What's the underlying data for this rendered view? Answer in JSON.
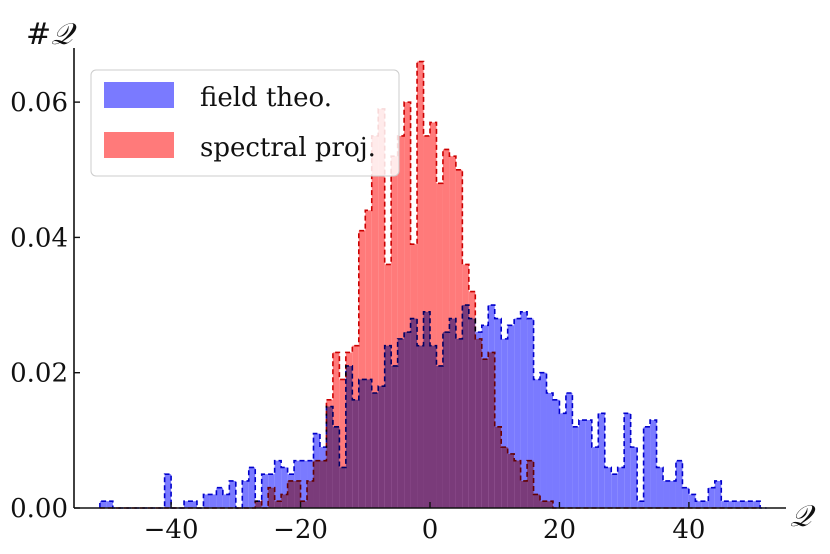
{
  "chart_data": {
    "type": "histogram",
    "title": "",
    "xlabel": "𝒬",
    "ylabel": "#𝒬",
    "xlim": [
      -55,
      55
    ],
    "ylim": [
      0,
      0.068
    ],
    "bin_width": 1,
    "x_ticks": [
      {
        "value": -40,
        "label": "−40"
      },
      {
        "value": -20,
        "label": "−20"
      },
      {
        "value": 0,
        "label": "0"
      },
      {
        "value": 20,
        "label": "20"
      },
      {
        "value": 40,
        "label": "40"
      }
    ],
    "y_ticks": [
      {
        "value": 0.0,
        "label": "0.00"
      },
      {
        "value": 0.02,
        "label": "0.02"
      },
      {
        "value": 0.04,
        "label": "0.04"
      },
      {
        "value": 0.06,
        "label": "0.06"
      }
    ],
    "grid": false,
    "legend_position": "top-left",
    "series": [
      {
        "name": "field theo.",
        "color": "#6b6bff",
        "edge_color": "#0000cc",
        "x_start": -51,
        "values": [
          0.001,
          0.001,
          0,
          0,
          0,
          0,
          0,
          0,
          0,
          0,
          0.005,
          0,
          0,
          0.001,
          0.001,
          0,
          0.002,
          0.002,
          0.003,
          0.002,
          0.004,
          0,
          0.004,
          0.006,
          0.001,
          0.005,
          0.005,
          0.007,
          0.006,
          0.005,
          0.007,
          0.007,
          0.007,
          0.011,
          0.009,
          0.015,
          0.012,
          0.006,
          0.021,
          0.016,
          0.019,
          0.019,
          0.017,
          0.018,
          0.024,
          0.021,
          0.025,
          0.026,
          0.028,
          0.024,
          0.029,
          0.024,
          0.021,
          0.026,
          0.028,
          0.025,
          0.03,
          0.028,
          0.026,
          0.027,
          0.03,
          0.028,
          0.025,
          0.027,
          0.028,
          0.029,
          0.028,
          0.019,
          0.02,
          0.017,
          0.016,
          0.014,
          0.017,
          0.012,
          0.013,
          0.013,
          0.009,
          0.014,
          0.006,
          0.005,
          0.006,
          0.014,
          0.009,
          0.001,
          0.012,
          0.013,
          0.006,
          0.004,
          0.004,
          0.007,
          0.003,
          0.002,
          0.001,
          0.001,
          0.003,
          0.004,
          0.001,
          0.001,
          0.001,
          0.001,
          0.001,
          0.001,
          0
        ]
      },
      {
        "name": "spectral proj.",
        "color": "#ff6b6b",
        "edge_color": "#cc0000",
        "x_start": -51,
        "values": [
          0,
          0,
          0,
          0,
          0,
          0,
          0,
          0,
          0,
          0,
          0,
          0,
          0,
          0,
          0,
          0,
          0,
          0,
          0,
          0,
          0,
          0,
          0,
          0,
          0.001,
          0,
          0.003,
          0.001,
          0.002,
          0.004,
          0.004,
          0.001,
          0.004,
          0.007,
          0.007,
          0.016,
          0.023,
          0.019,
          0.023,
          0.024,
          0.041,
          0.044,
          0.055,
          0.059,
          0.036,
          0.052,
          0.055,
          0.06,
          0.039,
          0.066,
          0.055,
          0.057,
          0.048,
          0.053,
          0.052,
          0.05,
          0.036,
          0.032,
          0.025,
          0.022,
          0.023,
          0.012,
          0.009,
          0.008,
          0.007,
          0.004,
          0.007,
          0.002,
          0.001,
          0.001,
          0,
          0,
          0,
          0,
          0,
          0,
          0,
          0,
          0,
          0,
          0,
          0,
          0,
          0,
          0,
          0,
          0,
          0,
          0,
          0,
          0,
          0,
          0,
          0,
          0,
          0,
          0,
          0,
          0,
          0,
          0,
          0
        ]
      }
    ]
  }
}
